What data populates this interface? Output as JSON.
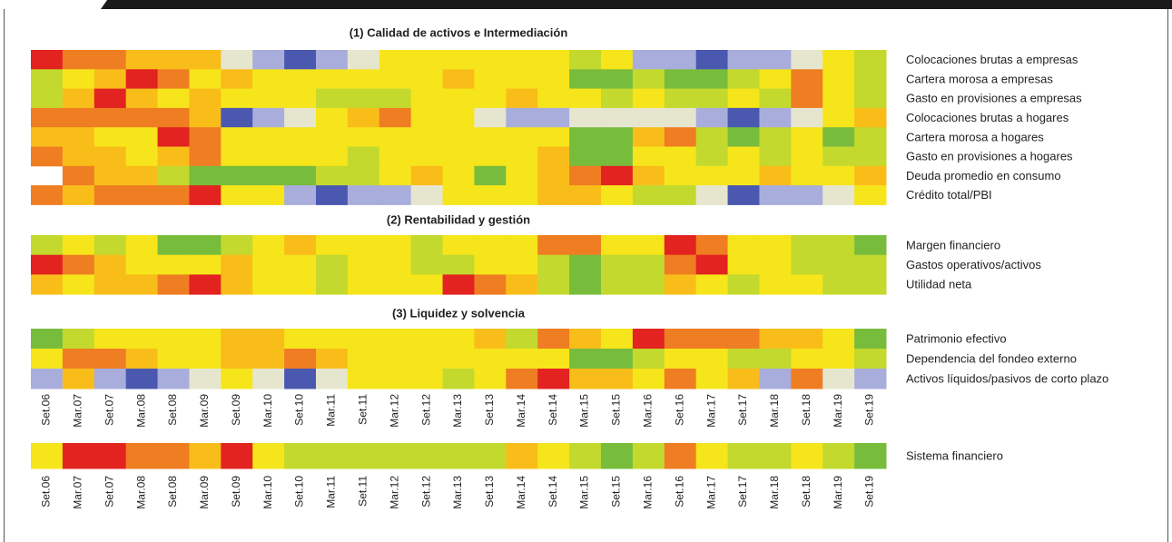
{
  "chart_data": [
    {
      "type": "heatmap",
      "title": "(1) Calidad de activos e Intermediación",
      "rows": [
        "Colocaciones brutas a empresas",
        "Cartera morosa a empresas",
        "Gasto en provisiones a empresas",
        "Colocaciones brutas a hogares",
        "Cartera morosa a hogares",
        "Gasto en provisiones a hogares",
        "Deuda promedio en consumo",
        "Crédito total/PBI"
      ],
      "values": [
        [
          8,
          7,
          7,
          6,
          6,
          6,
          2,
          1,
          0,
          1,
          2,
          5,
          5,
          5,
          5,
          5,
          5,
          4,
          5,
          1,
          1,
          0,
          1,
          1,
          2,
          5,
          4
        ],
        [
          4,
          5,
          6,
          8,
          7,
          5,
          6,
          5,
          5,
          5,
          5,
          5,
          5,
          6,
          5,
          5,
          5,
          3,
          3,
          4,
          3,
          3,
          4,
          5,
          7,
          5,
          4
        ],
        [
          4,
          6,
          8,
          6,
          5,
          6,
          5,
          5,
          5,
          4,
          4,
          4,
          5,
          5,
          5,
          6,
          5,
          5,
          4,
          5,
          4,
          4,
          5,
          4,
          7,
          5,
          4
        ],
        [
          7,
          7,
          7,
          7,
          7,
          6,
          0,
          1,
          2,
          5,
          6,
          7,
          5,
          5,
          2,
          1,
          1,
          2,
          2,
          2,
          2,
          1,
          0,
          1,
          2,
          5,
          6
        ],
        [
          6,
          6,
          5,
          5,
          8,
          7,
          5,
          5,
          5,
          5,
          5,
          5,
          5,
          5,
          5,
          5,
          5,
          3,
          3,
          6,
          7,
          4,
          3,
          4,
          5,
          3,
          4
        ],
        [
          7,
          6,
          6,
          5,
          6,
          7,
          5,
          5,
          5,
          5,
          4,
          5,
          5,
          5,
          5,
          5,
          6,
          3,
          3,
          5,
          5,
          4,
          5,
          4,
          5,
          4,
          4
        ],
        [
          null,
          7,
          6,
          6,
          4,
          3,
          3,
          3,
          3,
          4,
          4,
          5,
          6,
          5,
          3,
          5,
          6,
          7,
          8,
          6,
          5,
          5,
          5,
          6,
          5,
          5,
          6
        ],
        [
          7,
          6,
          7,
          7,
          7,
          8,
          5,
          5,
          1,
          0,
          1,
          1,
          2,
          5,
          5,
          5,
          6,
          6,
          5,
          4,
          4,
          2,
          0,
          1,
          1,
          2,
          5
        ]
      ],
      "colorscale": [
        "#4a58b0",
        "#a9addc",
        "#e6e6cf",
        "#78bc3c",
        "#c3d92e",
        "#f6e51a",
        "#f9bd1a",
        "#ef7d22",
        "#e2231f"
      ]
    },
    {
      "type": "heatmap",
      "title": "(2) Rentabilidad y gestión",
      "rows": [
        "Margen financiero",
        "Gastos operativos/activos",
        "Utilidad neta"
      ],
      "values": [
        [
          4,
          5,
          4,
          5,
          3,
          3,
          4,
          5,
          6,
          5,
          5,
          5,
          4,
          5,
          5,
          5,
          7,
          7,
          5,
          5,
          8,
          7,
          5,
          5,
          4,
          4,
          3
        ],
        [
          8,
          7,
          6,
          5,
          5,
          5,
          6,
          5,
          5,
          4,
          5,
          5,
          4,
          4,
          5,
          5,
          4,
          3,
          4,
          4,
          7,
          8,
          5,
          5,
          4,
          4,
          4
        ],
        [
          6,
          5,
          6,
          6,
          7,
          8,
          6,
          5,
          5,
          4,
          5,
          5,
          5,
          8,
          7,
          6,
          4,
          3,
          4,
          4,
          6,
          5,
          4,
          5,
          5,
          4,
          4
        ]
      ],
      "colorscale": [
        "#4a58b0",
        "#a9addc",
        "#e6e6cf",
        "#78bc3c",
        "#c3d92e",
        "#f6e51a",
        "#f9bd1a",
        "#ef7d22",
        "#e2231f"
      ]
    },
    {
      "type": "heatmap",
      "title": "(3) Liquidez y solvencia",
      "rows": [
        "Patrimonio efectivo",
        "Dependencia del fondeo externo",
        "Activos líquidos/pasivos de corto plazo"
      ],
      "values": [
        [
          3,
          4,
          5,
          5,
          5,
          5,
          6,
          6,
          5,
          5,
          5,
          5,
          5,
          5,
          6,
          4,
          7,
          6,
          5,
          8,
          7,
          7,
          7,
          6,
          6,
          5,
          3
        ],
        [
          5,
          7,
          7,
          6,
          5,
          5,
          6,
          6,
          7,
          6,
          5,
          5,
          5,
          5,
          5,
          5,
          5,
          3,
          3,
          4,
          5,
          5,
          4,
          4,
          5,
          5,
          4
        ],
        [
          1,
          6,
          1,
          0,
          1,
          2,
          5,
          2,
          0,
          2,
          5,
          5,
          5,
          4,
          5,
          7,
          8,
          6,
          6,
          5,
          7,
          5,
          6,
          1,
          7,
          2,
          1
        ]
      ],
      "categories": [
        "Set.06",
        "Mar.07",
        "Set.07",
        "Mar.08",
        "Set.08",
        "Mar.09",
        "Set.09",
        "Mar.10",
        "Set.10",
        "Mar.11",
        "Set.11",
        "Mar.12",
        "Set.12",
        "Mar.13",
        "Set.13",
        "Mar.14",
        "Set.14",
        "Mar.15",
        "Set.15",
        "Mar.16",
        "Set.16",
        "Mar.17",
        "Set.17",
        "Mar.18",
        "Set.18",
        "Mar.19",
        "Set.19"
      ],
      "colorscale": [
        "#4a58b0",
        "#a9addc",
        "#e6e6cf",
        "#78bc3c",
        "#c3d92e",
        "#f6e51a",
        "#f9bd1a",
        "#ef7d22",
        "#e2231f"
      ]
    },
    {
      "type": "heatmap",
      "rows": [
        "Sistema financiero"
      ],
      "values": [
        [
          5,
          8,
          8,
          7,
          7,
          6,
          8,
          5,
          4,
          4,
          4,
          4,
          4,
          4,
          4,
          6,
          5,
          4,
          3,
          4,
          7,
          5,
          4,
          4,
          5,
          4,
          3
        ]
      ],
      "categories": [
        "Set.06",
        "Mar.07",
        "Set.07",
        "Mar.08",
        "Set.08",
        "Mar.09",
        "Set.09",
        "Mar.10",
        "Set.10",
        "Mar.11",
        "Set.11",
        "Mar.12",
        "Set.12",
        "Mar.13",
        "Set.13",
        "Mar.14",
        "Set.14",
        "Mar.15",
        "Set.15",
        "Mar.16",
        "Set.16",
        "Mar.17",
        "Set.17",
        "Mar.18",
        "Set.18",
        "Mar.19",
        "Set.19"
      ],
      "colorscale": [
        "#4a58b0",
        "#a9addc",
        "#e6e6cf",
        "#78bc3c",
        "#c3d92e",
        "#f6e51a",
        "#f9bd1a",
        "#ef7d22",
        "#e2231f"
      ]
    }
  ]
}
